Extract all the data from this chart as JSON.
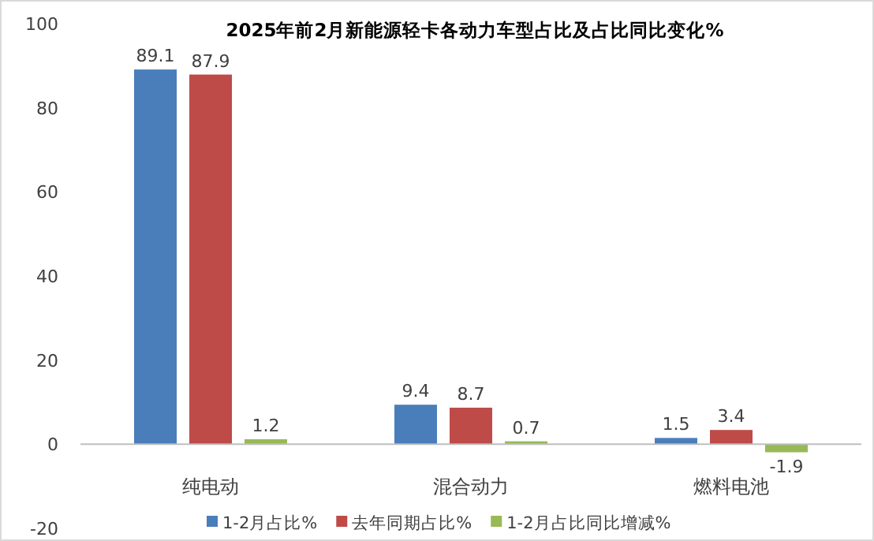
{
  "chart_data": {
    "type": "bar",
    "title": "2025年前2月新能源轻卡各动力车型占比及占比同比变化%",
    "categories": [
      "纯电动",
      "混合动力",
      "燃料电池"
    ],
    "series": [
      {
        "name": "1-2月占比%",
        "color": "#4a7ebb",
        "values": [
          89.1,
          9.4,
          1.5
        ]
      },
      {
        "name": "去年同期占比%",
        "color": "#be4b48",
        "values": [
          87.9,
          8.7,
          3.4
        ]
      },
      {
        "name": "1-2月占比同比增减%",
        "color": "#98b954",
        "values": [
          1.2,
          0.7,
          -1.9
        ]
      }
    ],
    "ylim": [
      -20,
      100
    ],
    "yticks": [
      -20,
      0,
      20,
      40,
      60,
      80,
      100
    ],
    "data_labels": true,
    "legend": "bottom",
    "grid": false
  }
}
